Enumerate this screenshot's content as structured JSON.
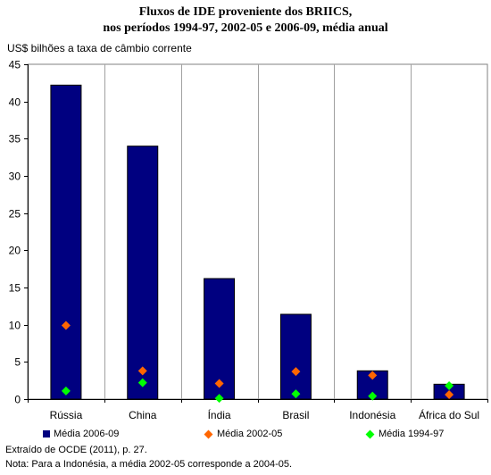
{
  "title_line1": "Fluxos de IDE proveniente dos BRIICS,",
  "title_line2": "nos períodos 1994-97, 2002-05 e 2006-09, média anual",
  "units_label": "US$ bilhões a taxa de câmbio corrente",
  "source": "Extraído de OCDE (2011), p. 27.",
  "note": "Nota: Para a Indonésia, a média 2002-05 corresponde a 2004-05.",
  "colors": {
    "bar": "#000080",
    "diamond_2002": "#ff6600",
    "diamond_1994": "#00ff00"
  },
  "chart_data": {
    "type": "bar",
    "categories": [
      "Rússia",
      "China",
      "Índia",
      "Brasil",
      "Indonésia",
      "África do Sul"
    ],
    "ylim": [
      0,
      45
    ],
    "yticks": [
      0,
      5,
      10,
      15,
      20,
      25,
      30,
      35,
      40,
      45
    ],
    "series": [
      {
        "name": "Média 2006-09",
        "kind": "bar",
        "values": [
          42.2,
          34.0,
          16.2,
          11.4,
          3.8,
          2.0
        ]
      },
      {
        "name": "Média 2002-05",
        "kind": "marker",
        "marker": "diamond",
        "values": [
          9.9,
          3.8,
          2.1,
          3.7,
          3.2,
          0.6
        ]
      },
      {
        "name": "Média 1994-97",
        "kind": "marker",
        "marker": "diamond",
        "values": [
          1.1,
          2.2,
          0.1,
          0.7,
          0.4,
          1.8
        ]
      }
    ]
  }
}
